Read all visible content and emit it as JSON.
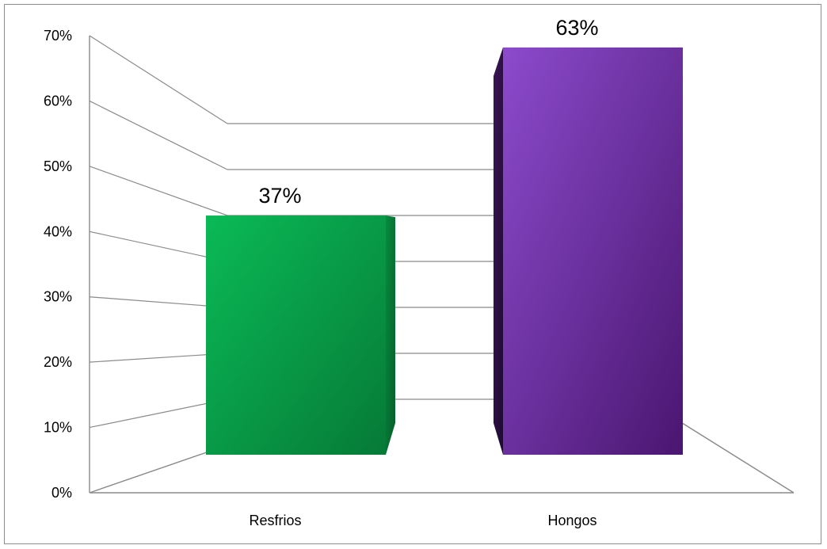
{
  "chart_data": {
    "type": "bar",
    "categories": [
      "Resfrios",
      "Hongos"
    ],
    "values": [
      37,
      63
    ],
    "data_labels": [
      "37%",
      "63%"
    ],
    "ylim": [
      0,
      70
    ],
    "yticks": [
      0,
      10,
      20,
      30,
      40,
      50,
      60,
      70
    ],
    "ytick_labels": [
      "0%",
      "10%",
      "20%",
      "30%",
      "40%",
      "50%",
      "60%",
      "70%"
    ],
    "grid": true,
    "legend": "none",
    "colors": {
      "Resfrios": "#0a9a45",
      "Hongos": "#6a2a9e"
    }
  }
}
